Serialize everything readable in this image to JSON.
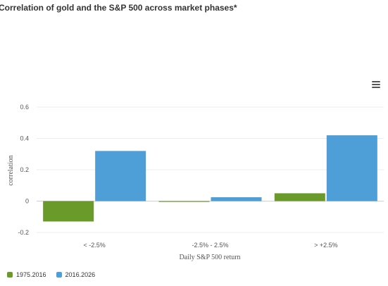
{
  "chart_data": {
    "type": "bar",
    "title": "Correlation of gold and the S&P 500 across market phases*",
    "xlabel": "Daily S&P 500 return",
    "ylabel": "correlation",
    "categories": [
      "< -2.5%",
      "-2.5% - 2.5%",
      "> +2.5%"
    ],
    "series": [
      {
        "name": "1975.2016",
        "color": "#6a9a2a",
        "values": [
          -0.13,
          -0.005,
          0.05
        ]
      },
      {
        "name": "2016.2026",
        "color": "#4e9fd8",
        "values": [
          0.32,
          0.025,
          0.42
        ]
      }
    ],
    "ylim": [
      -0.2,
      0.6
    ],
    "yticks": [
      -0.2,
      0,
      0.2,
      0.4,
      0.6
    ],
    "ytick_labels": [
      "-0.2",
      "0",
      "0.2",
      "0.4",
      "0.6"
    ],
    "grid": true,
    "legend_position": "bottom-left"
  },
  "menu": {
    "icon": "hamburger-menu-icon"
  }
}
